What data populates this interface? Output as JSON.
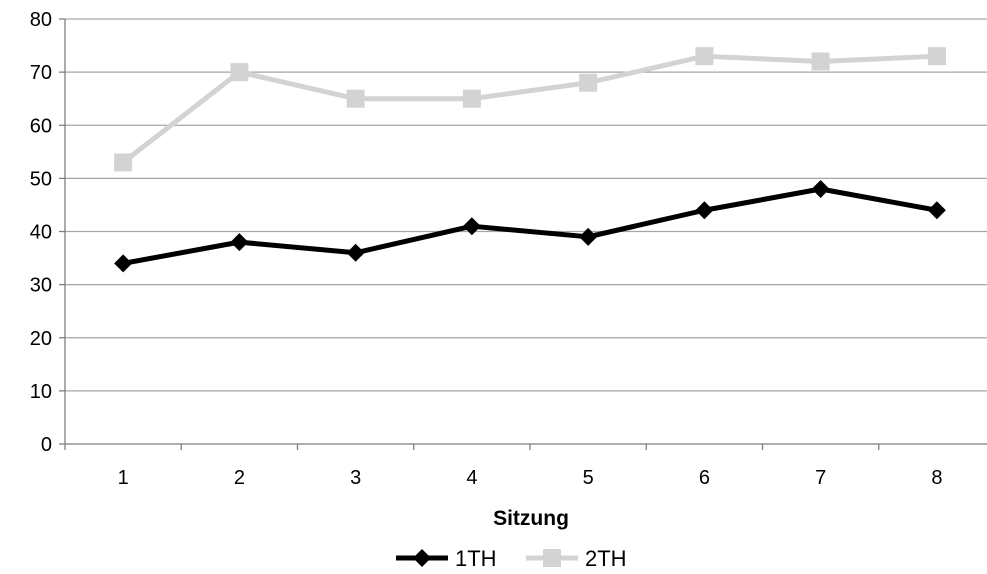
{
  "chart_data": {
    "type": "line",
    "categories": [
      "1",
      "2",
      "3",
      "4",
      "5",
      "6",
      "7",
      "8"
    ],
    "series": [
      {
        "name": "1TH",
        "values": [
          34,
          38,
          36,
          41,
          39,
          44,
          48,
          44
        ],
        "color": "#000000",
        "marker": "diamond"
      },
      {
        "name": "2TH",
        "values": [
          53,
          70,
          65,
          65,
          68,
          73,
          72,
          73
        ],
        "color": "#d3d3d3",
        "marker": "square"
      }
    ],
    "title": "",
    "xlabel": "Sitzung",
    "ylabel": "",
    "ylim": [
      0,
      80
    ],
    "yticks": [
      "0",
      "10",
      "20",
      "30",
      "40",
      "50",
      "60",
      "70",
      "80"
    ],
    "grid": "horizontal",
    "legend_position": "bottom"
  }
}
